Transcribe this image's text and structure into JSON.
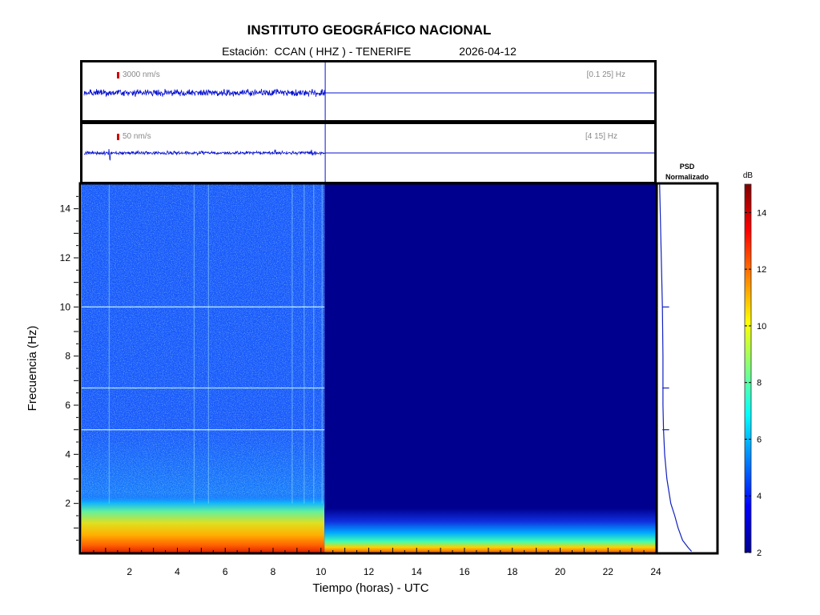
{
  "header": {
    "title": "INSTITUTO GEOGRÁFICO NACIONAL",
    "station": "Estación:  CCAN ( HHZ ) - TENERIFE",
    "date": "2026-04-12"
  },
  "traces": [
    {
      "scale_label": "3000 nm/s",
      "band_label": "[0.1 25] Hz",
      "data_end_hours": 10.15
    },
    {
      "scale_label": "50 nm/s",
      "band_label": "[4 15] Hz",
      "data_end_hours": 10.15
    }
  ],
  "psd": {
    "title_line1": "PSD",
    "title_line2": "Normalizado"
  },
  "colorbar": {
    "label": "dB",
    "ticks": [
      2,
      4,
      6,
      8,
      10,
      12,
      14
    ],
    "range": [
      2,
      15
    ],
    "colormap": "jet"
  },
  "chart_data": {
    "type": "heatmap",
    "xlabel": "Tiempo (horas) - UTC",
    "ylabel": "Frecuencia  (Hz)",
    "xlim": [
      0,
      24
    ],
    "ylim": [
      0,
      15
    ],
    "xticks": [
      2,
      4,
      6,
      8,
      10,
      12,
      14,
      16,
      18,
      20,
      22,
      24
    ],
    "yticks": [
      2,
      4,
      6,
      8,
      10,
      12,
      14
    ],
    "data_end_hours": 10.15,
    "persistent_lines_hz": [
      5.0,
      6.7,
      10.0
    ],
    "psd_profile": {
      "freq_hz": [
        0.05,
        0.2,
        0.5,
        1.0,
        1.5,
        2.0,
        3.0,
        4.0,
        5.0,
        6.0,
        6.7,
        8.0,
        10.0,
        12.0,
        14.0,
        15.0
      ],
      "value_norm": [
        0.58,
        0.52,
        0.42,
        0.34,
        0.28,
        0.21,
        0.14,
        0.1,
        0.08,
        0.07,
        0.07,
        0.07,
        0.06,
        0.04,
        0.02,
        0.01
      ]
    }
  }
}
